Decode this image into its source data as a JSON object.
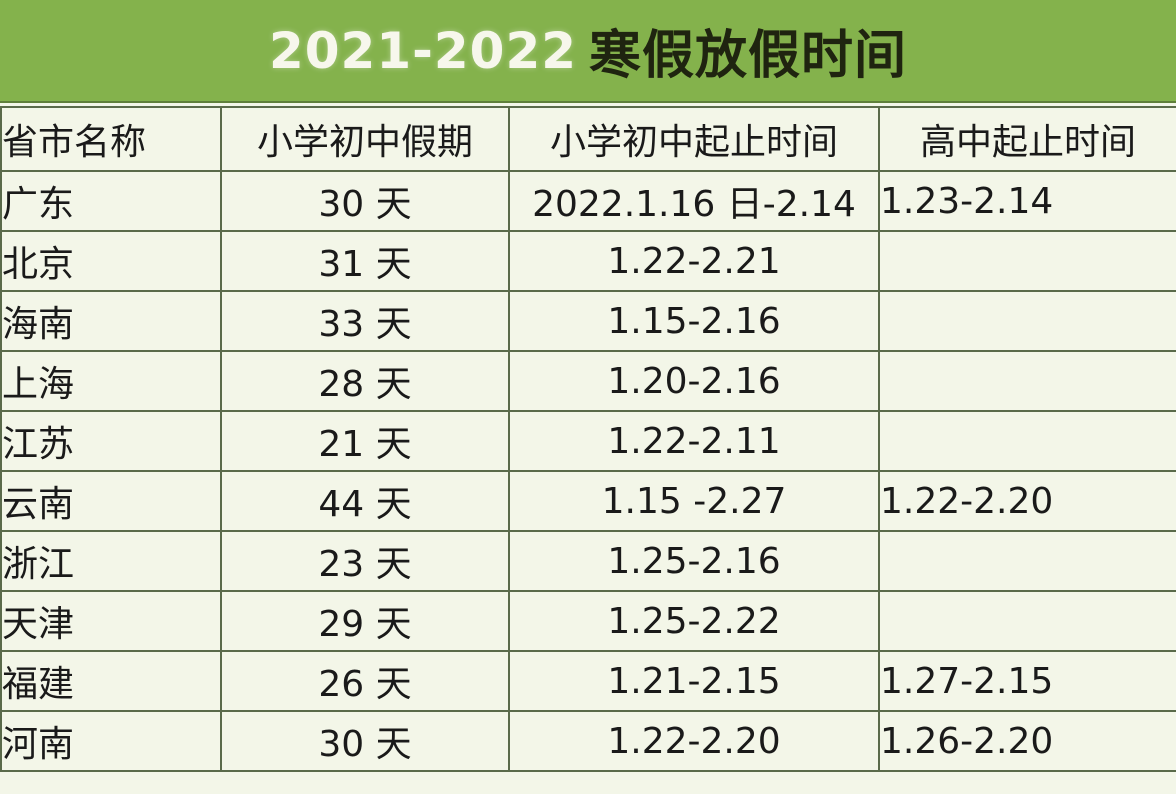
{
  "title": {
    "year": "2021-2022",
    "text": "寒假放假时间"
  },
  "headers": [
    "省市名称",
    "小学初中假期",
    "小学初中起止时间",
    "高中起止时间"
  ],
  "rows": [
    {
      "province": "广东",
      "days": "30 天",
      "primary_range": "2022.1.16 日-2.14",
      "high_range": "1.23-2.14"
    },
    {
      "province": "北京",
      "days": "31 天",
      "primary_range": "1.22-2.21",
      "high_range": ""
    },
    {
      "province": "海南",
      "days": "33 天",
      "primary_range": "1.15-2.16",
      "high_range": ""
    },
    {
      "province": "上海",
      "days": "28 天",
      "primary_range": "1.20-2.16",
      "high_range": ""
    },
    {
      "province": "江苏",
      "days": "21 天",
      "primary_range": "1.22-2.11",
      "high_range": ""
    },
    {
      "province": "云南",
      "days": "44 天",
      "primary_range": "1.15 -2.27",
      "high_range": "1.22-2.20"
    },
    {
      "province": "浙江",
      "days": "23 天",
      "primary_range": "1.25-2.16",
      "high_range": ""
    },
    {
      "province": "天津",
      "days": "29 天",
      "primary_range": "1.25-2.22",
      "high_range": ""
    },
    {
      "province": "福建",
      "days": "26 天",
      "primary_range": "1.21-2.15",
      "high_range": "1.27-2.15"
    },
    {
      "province": "河南",
      "days": "30 天",
      "primary_range": "1.22-2.20",
      "high_range": "1.26-2.20"
    }
  ],
  "colors": {
    "title_bg": "#84b24c",
    "table_bg": "#f3f6e8",
    "border": "#5a6a4a"
  }
}
